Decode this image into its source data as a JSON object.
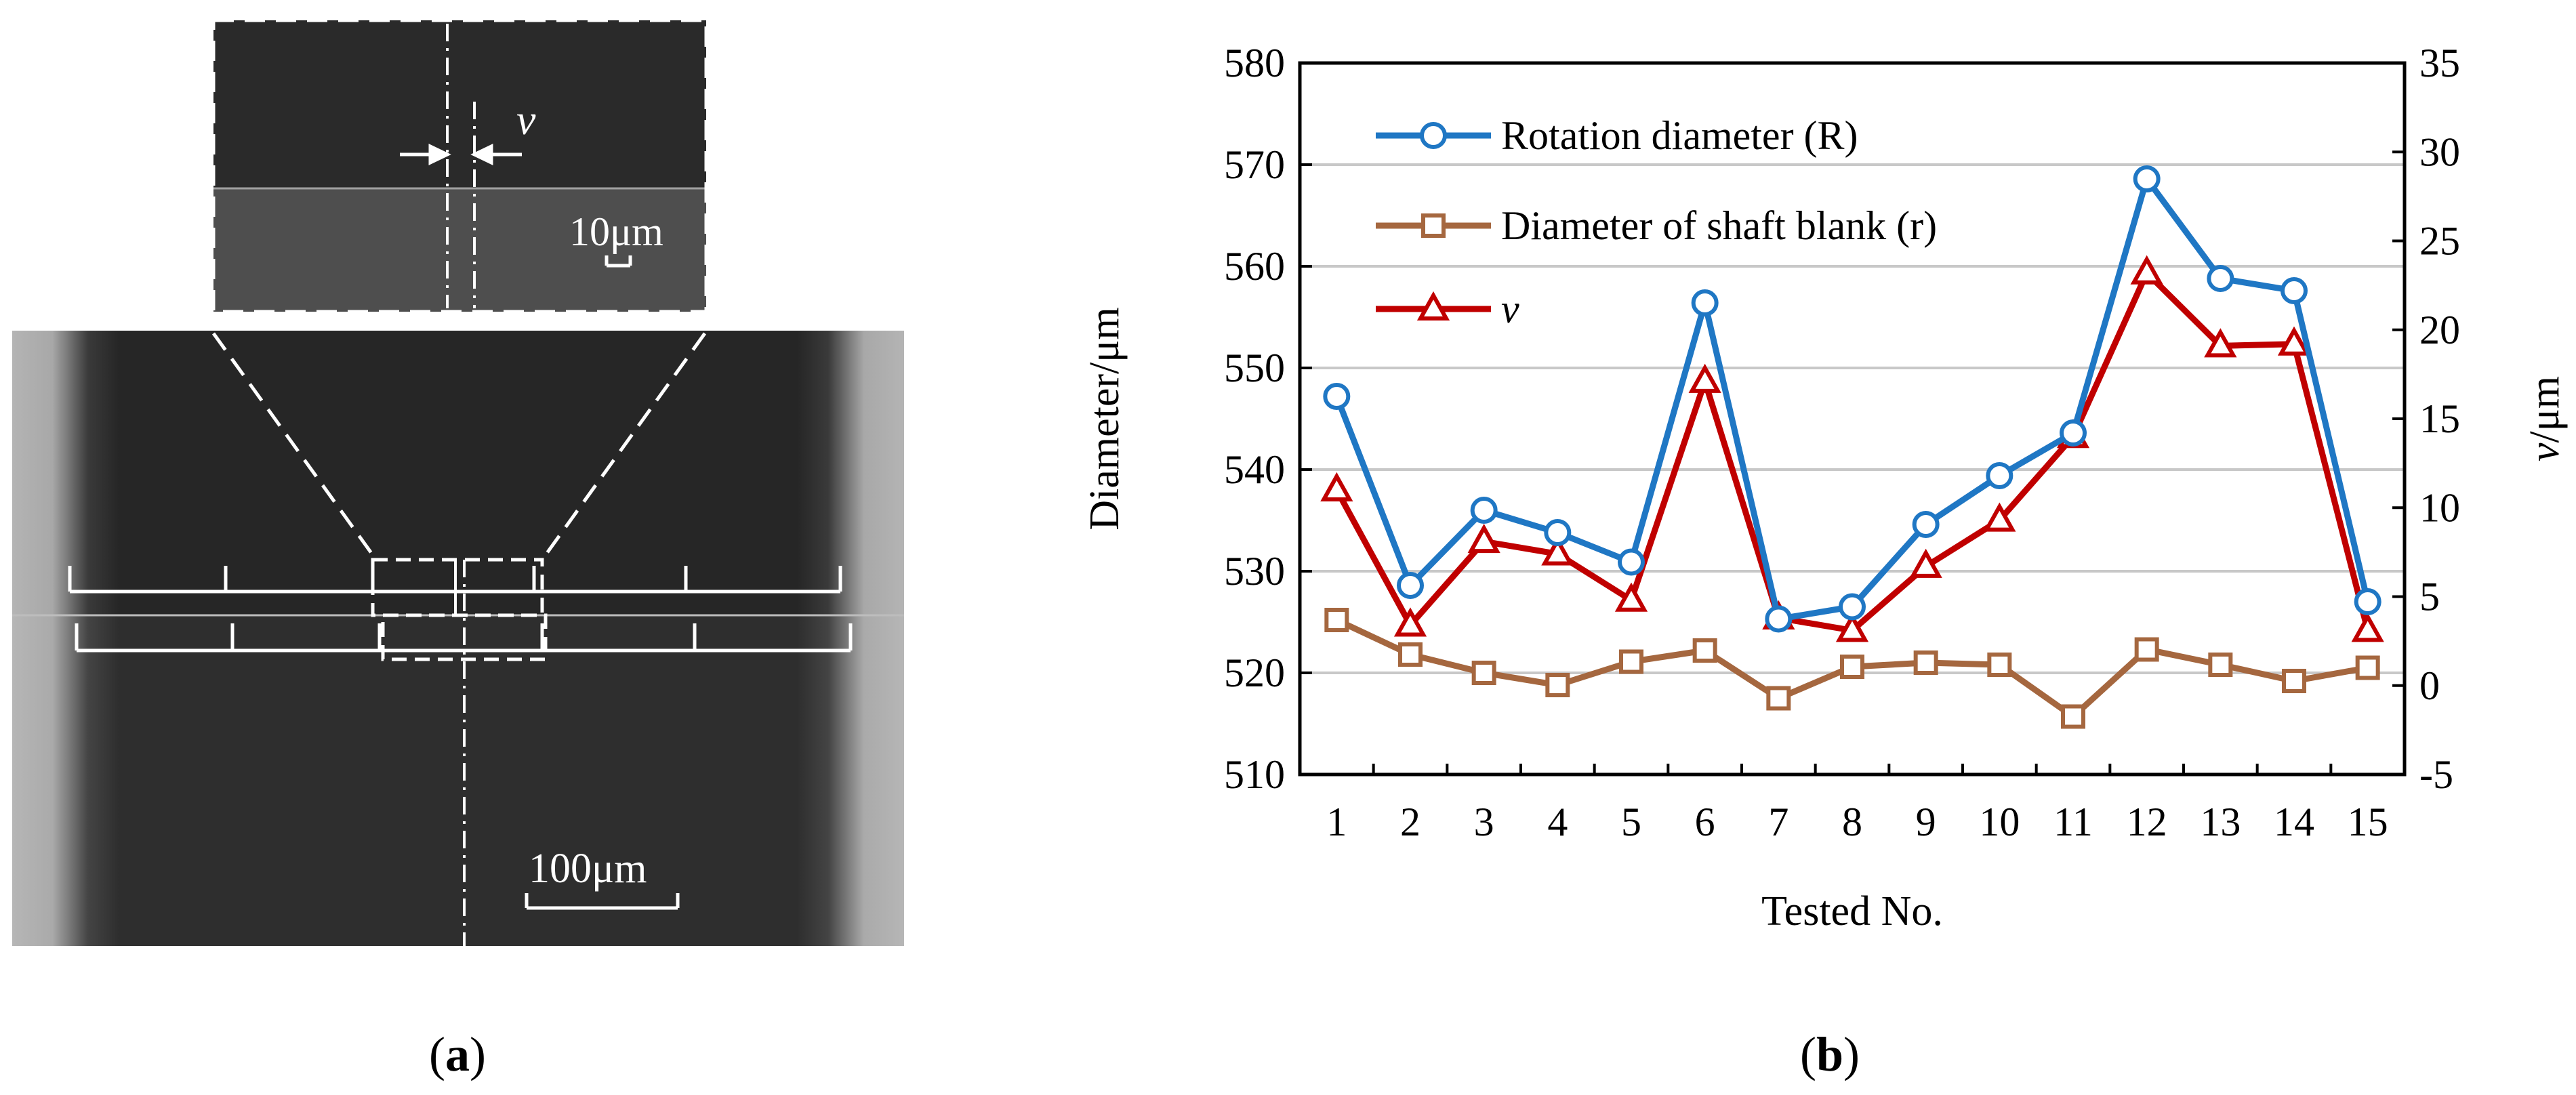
{
  "panel_a": {
    "caption_open": "(",
    "caption_letter": "a",
    "caption_close": ")",
    "inset_symbol": "v",
    "inset_scale": "10μm",
    "main_scale": "100μm"
  },
  "panel_b": {
    "caption_open": "(",
    "caption_letter": "b",
    "caption_close": ")"
  },
  "colors": {
    "rotation": "#1f77c4",
    "shaft": "#a5673f",
    "v": "#c00000",
    "grid": "#c8c8c8"
  },
  "chart_data": {
    "type": "line",
    "xlabel": "Tested No.",
    "ylabel": "Diameter/μm",
    "y2label_symbol": "v",
    "y2label_unit": "/μm",
    "categories": [
      "1",
      "2",
      "3",
      "4",
      "5",
      "6",
      "7",
      "8",
      "9",
      "10",
      "11",
      "12",
      "13",
      "14",
      "15"
    ],
    "ylim": [
      510,
      580
    ],
    "yticks": [
      510,
      520,
      530,
      540,
      550,
      560,
      570,
      580
    ],
    "y2lim": [
      -5,
      35
    ],
    "y2ticks": [
      -5,
      0,
      5,
      10,
      15,
      20,
      25,
      30,
      35
    ],
    "series": [
      {
        "name": "Rotation diameter (R)",
        "axis": "left",
        "marker": "circle",
        "values": [
          547.2,
          528.6,
          536.0,
          533.8,
          530.9,
          556.4,
          525.3,
          526.5,
          534.6,
          539.4,
          543.6,
          568.6,
          558.8,
          557.6,
          527.0
        ]
      },
      {
        "name": "Diameter of shaft blank (r)",
        "axis": "left",
        "marker": "square",
        "values": [
          525.2,
          521.8,
          520.0,
          518.8,
          521.1,
          522.2,
          517.5,
          520.6,
          521.0,
          520.8,
          515.7,
          522.3,
          520.8,
          519.2,
          520.5
        ]
      },
      {
        "name": "v",
        "axis": "right",
        "marker": "triangle",
        "values": [
          11.0,
          3.4,
          8.1,
          7.4,
          4.8,
          17.1,
          3.8,
          3.1,
          6.7,
          9.3,
          14.0,
          23.2,
          19.1,
          19.2,
          3.1
        ]
      }
    ]
  }
}
